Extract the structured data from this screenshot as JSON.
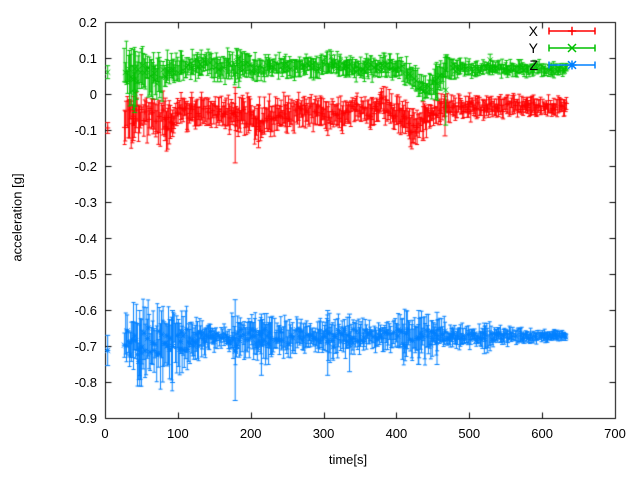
{
  "figure": {
    "background": "#ffffff",
    "axis_color": "#000000",
    "text_color": "#000000"
  },
  "chart_data": {
    "type": "errorbar",
    "title": "",
    "xlabel": "time[s]",
    "ylabel": "acceleration [g]",
    "xlim": [
      0,
      700
    ],
    "ylim": [
      -0.9,
      0.2
    ],
    "xticks": [
      0,
      100,
      200,
      300,
      400,
      500,
      600,
      700
    ],
    "yticks": [
      0.2,
      0.1,
      0,
      -0.1,
      -0.2,
      -0.3,
      -0.4,
      -0.5,
      -0.6,
      -0.7,
      -0.8,
      -0.9
    ],
    "ytick_labels": [
      "0.2",
      "0.1",
      "0",
      "-0.1",
      "-0.2",
      "-0.3",
      "-0.4",
      "-0.5",
      "-0.6",
      "-0.7",
      "-0.8",
      "-0.9"
    ],
    "grid": false,
    "legend": {
      "position": "top-right-inside",
      "border": false,
      "entries": [
        "X",
        "Y",
        "Z"
      ]
    },
    "series": [
      {
        "name": "X",
        "color": "#ff0000",
        "marker": "plus",
        "style": "yerrorbars",
        "start_point": {
          "t": 3,
          "v": -0.093,
          "err": 0.015
        },
        "envelope": [
          [
            26,
            -0.12,
            -0.01
          ],
          [
            32,
            -0.125,
            -0.015
          ],
          [
            38,
            -0.13,
            -0.005
          ],
          [
            44,
            -0.11,
            -0.015
          ],
          [
            50,
            -0.1,
            -0.02
          ],
          [
            56,
            -0.115,
            -0.015
          ],
          [
            62,
            -0.09,
            -0.015
          ],
          [
            68,
            -0.1,
            -0.02
          ],
          [
            74,
            -0.135,
            -0.02
          ],
          [
            80,
            -0.11,
            -0.015
          ],
          [
            86,
            -0.145,
            -0.03
          ],
          [
            92,
            -0.115,
            -0.02
          ],
          [
            100,
            -0.085,
            -0.01
          ],
          [
            115,
            -0.085,
            -0.015
          ],
          [
            130,
            -0.08,
            -0.01
          ],
          [
            145,
            -0.082,
            -0.012
          ],
          [
            160,
            -0.086,
            -0.016
          ],
          [
            172,
            -0.09,
            -0.012
          ],
          [
            178,
            -0.105,
            -0.008
          ],
          [
            186,
            -0.1,
            -0.02
          ],
          [
            196,
            -0.11,
            -0.02
          ],
          [
            206,
            -0.12,
            -0.025
          ],
          [
            214,
            -0.125,
            -0.03
          ],
          [
            222,
            -0.112,
            -0.02
          ],
          [
            232,
            -0.098,
            -0.015
          ],
          [
            242,
            -0.09,
            -0.012
          ],
          [
            252,
            -0.092,
            -0.015
          ],
          [
            262,
            -0.088,
            -0.012
          ],
          [
            272,
            -0.084,
            -0.012
          ],
          [
            282,
            -0.082,
            -0.01
          ],
          [
            292,
            -0.088,
            -0.015
          ],
          [
            300,
            -0.095,
            -0.022
          ],
          [
            308,
            -0.1,
            -0.028
          ],
          [
            316,
            -0.095,
            -0.025
          ],
          [
            324,
            -0.092,
            -0.022
          ],
          [
            332,
            -0.085,
            -0.015
          ],
          [
            340,
            -0.06,
            -0.005
          ],
          [
            348,
            -0.07,
            -0.01
          ],
          [
            356,
            -0.075,
            -0.015
          ],
          [
            364,
            -0.08,
            -0.012
          ],
          [
            372,
            -0.07,
            -0.005
          ],
          [
            380,
            -0.065,
            0.01
          ],
          [
            388,
            -0.07,
            0.005
          ],
          [
            396,
            -0.085,
            -0.015
          ],
          [
            404,
            -0.1,
            -0.025
          ],
          [
            412,
            -0.115,
            -0.03
          ],
          [
            420,
            -0.13,
            -0.04
          ],
          [
            428,
            -0.125,
            -0.038
          ],
          [
            436,
            -0.112,
            -0.03
          ],
          [
            444,
            -0.095,
            -0.022
          ],
          [
            452,
            -0.078,
            -0.015
          ],
          [
            460,
            -0.068,
            -0.01
          ],
          [
            470,
            -0.064,
            -0.007
          ],
          [
            485,
            -0.063,
            -0.007
          ],
          [
            500,
            -0.062,
            -0.008
          ],
          [
            520,
            -0.06,
            -0.009
          ],
          [
            540,
            -0.06,
            -0.01
          ],
          [
            560,
            -0.058,
            -0.011
          ],
          [
            580,
            -0.057,
            -0.011
          ],
          [
            600,
            -0.056,
            -0.012
          ],
          [
            620,
            -0.055,
            -0.012
          ],
          [
            634,
            -0.055,
            -0.012
          ]
        ],
        "spikes": [
          [
            38,
            -0.128,
            -0.005
          ],
          [
            82,
            -0.128,
            -0.01
          ],
          [
            178,
            -0.19,
            0.02
          ],
          [
            210,
            -0.148,
            -0.03
          ],
          [
            436,
            -0.128,
            -0.02
          ],
          [
            466,
            -0.115,
            -0.005
          ]
        ]
      },
      {
        "name": "Y",
        "color": "#00c000",
        "marker": "times",
        "style": "yerrorbars",
        "start_point": {
          "t": 3,
          "v": 0.062,
          "err": 0.018
        },
        "envelope": [
          [
            26,
            0.03,
            0.115
          ],
          [
            32,
            -0.02,
            0.117
          ],
          [
            38,
            -0.045,
            0.115
          ],
          [
            44,
            -0.01,
            0.112
          ],
          [
            50,
            0.01,
            0.108
          ],
          [
            56,
            0.02,
            0.105
          ],
          [
            62,
            0.0,
            0.1
          ],
          [
            68,
            0.01,
            0.095
          ],
          [
            74,
            -0.01,
            0.092
          ],
          [
            80,
            0.015,
            0.1
          ],
          [
            86,
            0.03,
            0.105
          ],
          [
            92,
            0.035,
            0.112
          ],
          [
            100,
            0.045,
            0.11
          ],
          [
            115,
            0.048,
            0.108
          ],
          [
            130,
            0.05,
            0.112
          ],
          [
            145,
            0.052,
            0.115
          ],
          [
            160,
            0.048,
            0.11
          ],
          [
            172,
            0.04,
            0.112
          ],
          [
            180,
            0.035,
            0.115
          ],
          [
            190,
            0.045,
            0.108
          ],
          [
            205,
            0.05,
            0.102
          ],
          [
            220,
            0.048,
            0.1
          ],
          [
            235,
            0.05,
            0.102
          ],
          [
            250,
            0.052,
            0.104
          ],
          [
            265,
            0.05,
            0.1
          ],
          [
            280,
            0.05,
            0.103
          ],
          [
            295,
            0.055,
            0.108
          ],
          [
            305,
            0.058,
            0.112
          ],
          [
            315,
            0.055,
            0.108
          ],
          [
            330,
            0.05,
            0.102
          ],
          [
            345,
            0.048,
            0.1
          ],
          [
            360,
            0.048,
            0.1
          ],
          [
            375,
            0.052,
            0.105
          ],
          [
            385,
            0.056,
            0.108
          ],
          [
            395,
            0.052,
            0.104
          ],
          [
            405,
            0.048,
            0.1
          ],
          [
            412,
            0.04,
            0.095
          ],
          [
            420,
            0.02,
            0.085
          ],
          [
            428,
            0.0,
            0.06
          ],
          [
            436,
            -0.012,
            0.045
          ],
          [
            442,
            -0.018,
            0.035
          ],
          [
            448,
            0.0,
            0.055
          ],
          [
            453,
            -0.02,
            0.075
          ],
          [
            458,
            0.01,
            0.095
          ],
          [
            464,
            0.035,
            0.102
          ],
          [
            470,
            0.048,
            0.1
          ],
          [
            480,
            0.05,
            0.096
          ],
          [
            495,
            0.053,
            0.094
          ],
          [
            510,
            0.054,
            0.092
          ],
          [
            530,
            0.055,
            0.09
          ],
          [
            550,
            0.055,
            0.09
          ],
          [
            570,
            0.054,
            0.088
          ],
          [
            590,
            0.054,
            0.088
          ],
          [
            610,
            0.053,
            0.086
          ],
          [
            625,
            0.052,
            0.085
          ],
          [
            634,
            0.052,
            0.085
          ]
        ],
        "spikes": [
          [
            40,
            -0.05,
            0.06
          ],
          [
            180,
            0.08,
            0.128
          ],
          [
            310,
            0.09,
            0.12
          ],
          [
            467,
            -0.085,
            0.11
          ],
          [
            528,
            0.08,
            0.112
          ]
        ]
      },
      {
        "name": "Z",
        "color": "#0080ff",
        "marker": "star",
        "style": "yerrorbars",
        "start_point": {
          "t": 3,
          "v": -0.711,
          "err": 0.042
        },
        "envelope": [
          [
            26,
            -0.73,
            -0.64
          ],
          [
            32,
            -0.76,
            -0.61
          ],
          [
            38,
            -0.78,
            -0.6
          ],
          [
            44,
            -0.8,
            -0.595
          ],
          [
            50,
            -0.79,
            -0.6
          ],
          [
            56,
            -0.775,
            -0.605
          ],
          [
            62,
            -0.765,
            -0.61
          ],
          [
            68,
            -0.77,
            -0.6
          ],
          [
            74,
            -0.775,
            -0.605
          ],
          [
            80,
            -0.76,
            -0.61
          ],
          [
            86,
            -0.755,
            -0.612
          ],
          [
            92,
            -0.79,
            -0.6
          ],
          [
            100,
            -0.75,
            -0.615
          ],
          [
            110,
            -0.74,
            -0.62
          ],
          [
            120,
            -0.735,
            -0.625
          ],
          [
            130,
            -0.72,
            -0.63
          ],
          [
            140,
            -0.712,
            -0.638
          ],
          [
            150,
            -0.705,
            -0.645
          ],
          [
            160,
            -0.7,
            -0.648
          ],
          [
            170,
            -0.705,
            -0.645
          ],
          [
            178,
            -0.75,
            -0.612
          ],
          [
            186,
            -0.72,
            -0.63
          ],
          [
            196,
            -0.728,
            -0.626
          ],
          [
            206,
            -0.72,
            -0.63
          ],
          [
            214,
            -0.745,
            -0.615
          ],
          [
            222,
            -0.732,
            -0.62
          ],
          [
            232,
            -0.72,
            -0.63
          ],
          [
            242,
            -0.712,
            -0.634
          ],
          [
            252,
            -0.715,
            -0.63
          ],
          [
            262,
            -0.71,
            -0.635
          ],
          [
            272,
            -0.705,
            -0.638
          ],
          [
            282,
            -0.7,
            -0.64
          ],
          [
            292,
            -0.705,
            -0.638
          ],
          [
            302,
            -0.718,
            -0.628
          ],
          [
            310,
            -0.735,
            -0.618
          ],
          [
            318,
            -0.724,
            -0.624
          ],
          [
            326,
            -0.715,
            -0.63
          ],
          [
            334,
            -0.71,
            -0.634
          ],
          [
            342,
            -0.713,
            -0.63
          ],
          [
            350,
            -0.705,
            -0.638
          ],
          [
            360,
            -0.7,
            -0.64
          ],
          [
            370,
            -0.703,
            -0.64
          ],
          [
            380,
            -0.7,
            -0.64
          ],
          [
            390,
            -0.703,
            -0.638
          ],
          [
            400,
            -0.71,
            -0.632
          ],
          [
            408,
            -0.725,
            -0.62
          ],
          [
            416,
            -0.735,
            -0.612
          ],
          [
            424,
            -0.728,
            -0.617
          ],
          [
            432,
            -0.73,
            -0.618
          ],
          [
            440,
            -0.724,
            -0.62
          ],
          [
            448,
            -0.718,
            -0.625
          ],
          [
            456,
            -0.712,
            -0.63
          ],
          [
            464,
            -0.708,
            -0.636
          ],
          [
            472,
            -0.704,
            -0.64
          ],
          [
            485,
            -0.7,
            -0.644
          ],
          [
            500,
            -0.697,
            -0.647
          ],
          [
            515,
            -0.695,
            -0.648
          ],
          [
            525,
            -0.705,
            -0.642
          ],
          [
            535,
            -0.695,
            -0.65
          ],
          [
            548,
            -0.7,
            -0.648
          ],
          [
            560,
            -0.69,
            -0.653
          ],
          [
            575,
            -0.688,
            -0.655
          ],
          [
            590,
            -0.686,
            -0.657
          ],
          [
            605,
            -0.684,
            -0.658
          ],
          [
            620,
            -0.683,
            -0.659
          ],
          [
            634,
            -0.682,
            -0.66
          ]
        ],
        "spikes": [
          [
            47,
            -0.81,
            -0.6
          ],
          [
            92,
            -0.8,
            -0.6
          ],
          [
            178,
            -0.85,
            -0.57
          ],
          [
            214,
            -0.78,
            -0.61
          ],
          [
            305,
            -0.78,
            -0.6
          ],
          [
            335,
            -0.77,
            -0.61
          ],
          [
            430,
            -0.75,
            -0.6
          ],
          [
            455,
            -0.75,
            -0.605
          ],
          [
            520,
            -0.72,
            -0.635
          ]
        ]
      }
    ]
  }
}
